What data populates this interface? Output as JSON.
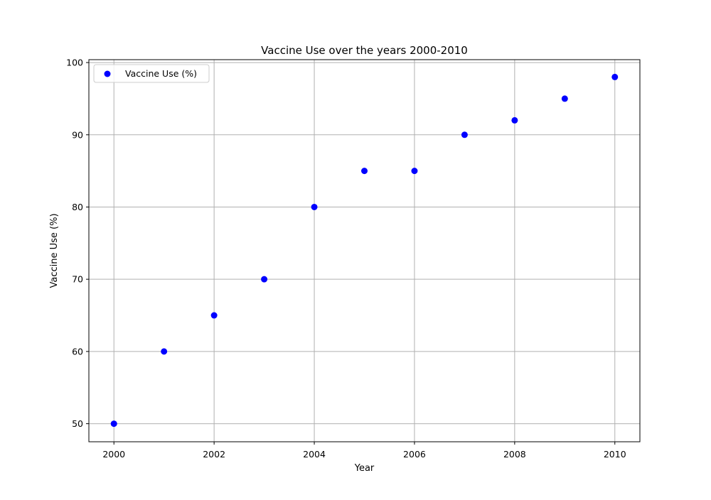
{
  "chart_data": {
    "type": "scatter",
    "title": "Vaccine Use over the years 2000-2010",
    "xlabel": "Year",
    "ylabel": "Vaccine Use (%)",
    "xlim": [
      1999.5,
      2010.5
    ],
    "ylim": [
      47.5,
      100.4
    ],
    "xticks": [
      2000,
      2002,
      2004,
      2006,
      2008,
      2010
    ],
    "yticks": [
      50,
      60,
      70,
      80,
      90,
      100
    ],
    "grid": true,
    "legend_position": "top-left",
    "series": [
      {
        "name": "Vaccine Use (%)",
        "color": "#0000ff",
        "x": [
          2000,
          2001,
          2002,
          2003,
          2004,
          2005,
          2006,
          2007,
          2008,
          2009,
          2010
        ],
        "y": [
          50,
          60,
          65,
          70,
          80,
          85,
          85,
          90,
          92,
          95,
          98
        ]
      }
    ]
  }
}
